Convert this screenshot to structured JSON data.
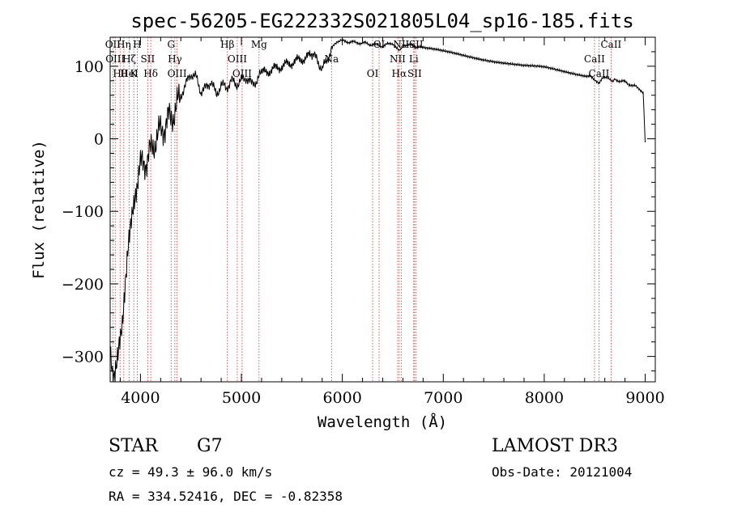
{
  "chart_data": {
    "type": "line",
    "title": "spec-56205-EG222332S021805L04_sp16-185.fits",
    "xlabel": "Wavelength (Å)",
    "ylabel": "Flux (relative)",
    "xlim": [
      3700,
      9100
    ],
    "ylim": [
      -335,
      140
    ],
    "x_ticks": [
      4000,
      5000,
      6000,
      7000,
      8000,
      9000
    ],
    "y_ticks": [
      -300,
      -200,
      -100,
      0,
      100
    ],
    "grid": false,
    "series": [
      {
        "x": [
          3700,
          3730,
          3760,
          3790,
          3820,
          3850,
          3880,
          3910,
          3940,
          3970,
          4000,
          4050,
          4100,
          4150,
          4200,
          4250,
          4300,
          4350,
          4400,
          4450,
          4500,
          4550,
          4600,
          4650,
          4700,
          4750,
          4800,
          4850,
          4900,
          4950,
          5000,
          5050,
          5100,
          5150,
          5200,
          5300,
          5400,
          5500,
          5600,
          5700,
          5750,
          5800,
          5850,
          5900,
          5950,
          6000,
          6100,
          6200,
          6300,
          6400,
          6500,
          6562,
          6600,
          6700,
          6800,
          7000,
          7200,
          7400,
          7600,
          7800,
          8000,
          8200,
          8400,
          8500,
          8542,
          8600,
          8662,
          8700,
          8800,
          8900,
          8980,
          9000
        ],
        "y": [
          -280,
          -320,
          -300,
          -270,
          -250,
          -200,
          -150,
          -120,
          -100,
          -80,
          -40,
          -30,
          -20,
          0,
          10,
          20,
          30,
          40,
          60,
          75,
          90,
          85,
          65,
          70,
          80,
          60,
          75,
          70,
          80,
          75,
          80,
          85,
          75,
          80,
          90,
          95,
          100,
          105,
          110,
          115,
          110,
          95,
          110,
          125,
          135,
          135,
          133,
          132,
          130,
          128,
          132,
          120,
          130,
          128,
          125,
          120,
          115,
          110,
          105,
          100,
          98,
          93,
          88,
          82,
          78,
          85,
          80,
          82,
          78,
          72,
          65,
          -5
        ]
      }
    ],
    "lines": [
      {
        "x": 3727,
        "labels": [
          "OII"
        ]
      },
      {
        "x": 3750,
        "labels": [
          "OIII"
        ]
      },
      {
        "x": 3798,
        "labels": [
          "Hθ"
        ]
      },
      {
        "x": 3835,
        "labels": [
          "Hη"
        ]
      },
      {
        "x": 3889,
        "labels": [
          "Hζ",
          "HeI"
        ]
      },
      {
        "x": 3934,
        "labels": [
          "K"
        ]
      },
      {
        "x": 3968,
        "labels": [
          "H"
        ]
      },
      {
        "x": 4072,
        "labels": [
          "SII"
        ]
      },
      {
        "x": 4102,
        "labels": [
          "Hδ"
        ]
      },
      {
        "x": 4304,
        "labels": [
          "G"
        ]
      },
      {
        "x": 4341,
        "labels": [
          "Hγ"
        ]
      },
      {
        "x": 4363,
        "labels": [
          "OIII"
        ]
      },
      {
        "x": 4861,
        "labels": [
          "Hβ"
        ]
      },
      {
        "x": 4959,
        "labels": [
          "OIII"
        ]
      },
      {
        "x": 5007,
        "labels": [
          "OIII"
        ]
      },
      {
        "x": 5175,
        "labels": [
          "Mg"
        ]
      },
      {
        "x": 5893,
        "labels": [
          "Na"
        ]
      },
      {
        "x": 6300,
        "labels": [
          "OI"
        ]
      },
      {
        "x": 6364,
        "labels": [
          "OI"
        ]
      },
      {
        "x": 6548,
        "labels": [
          "NII"
        ]
      },
      {
        "x": 6563,
        "labels": [
          "Hα"
        ]
      },
      {
        "x": 6583,
        "labels": [
          "NII"
        ]
      },
      {
        "x": 6707,
        "labels": [
          "Li"
        ]
      },
      {
        "x": 6716,
        "labels": [
          "SII"
        ]
      },
      {
        "x": 6731,
        "labels": [
          "SII"
        ]
      },
      {
        "x": 8498,
        "labels": [
          "CaII"
        ]
      },
      {
        "x": 8542,
        "labels": [
          "CaII"
        ]
      },
      {
        "x": 8662,
        "labels": [
          "CaII"
        ]
      }
    ]
  },
  "info": {
    "object_class": "STAR",
    "subclass": "G7",
    "survey": "LAMOST DR3",
    "cz": "cz = 49.3 ± 96.0 km/s",
    "obs_date": "Obs-Date: 20121004",
    "coords": "RA = 334.52416, DEC =  -0.82358"
  },
  "colors": {
    "line_markers": "#cc3333",
    "spectrum": "#000000"
  }
}
